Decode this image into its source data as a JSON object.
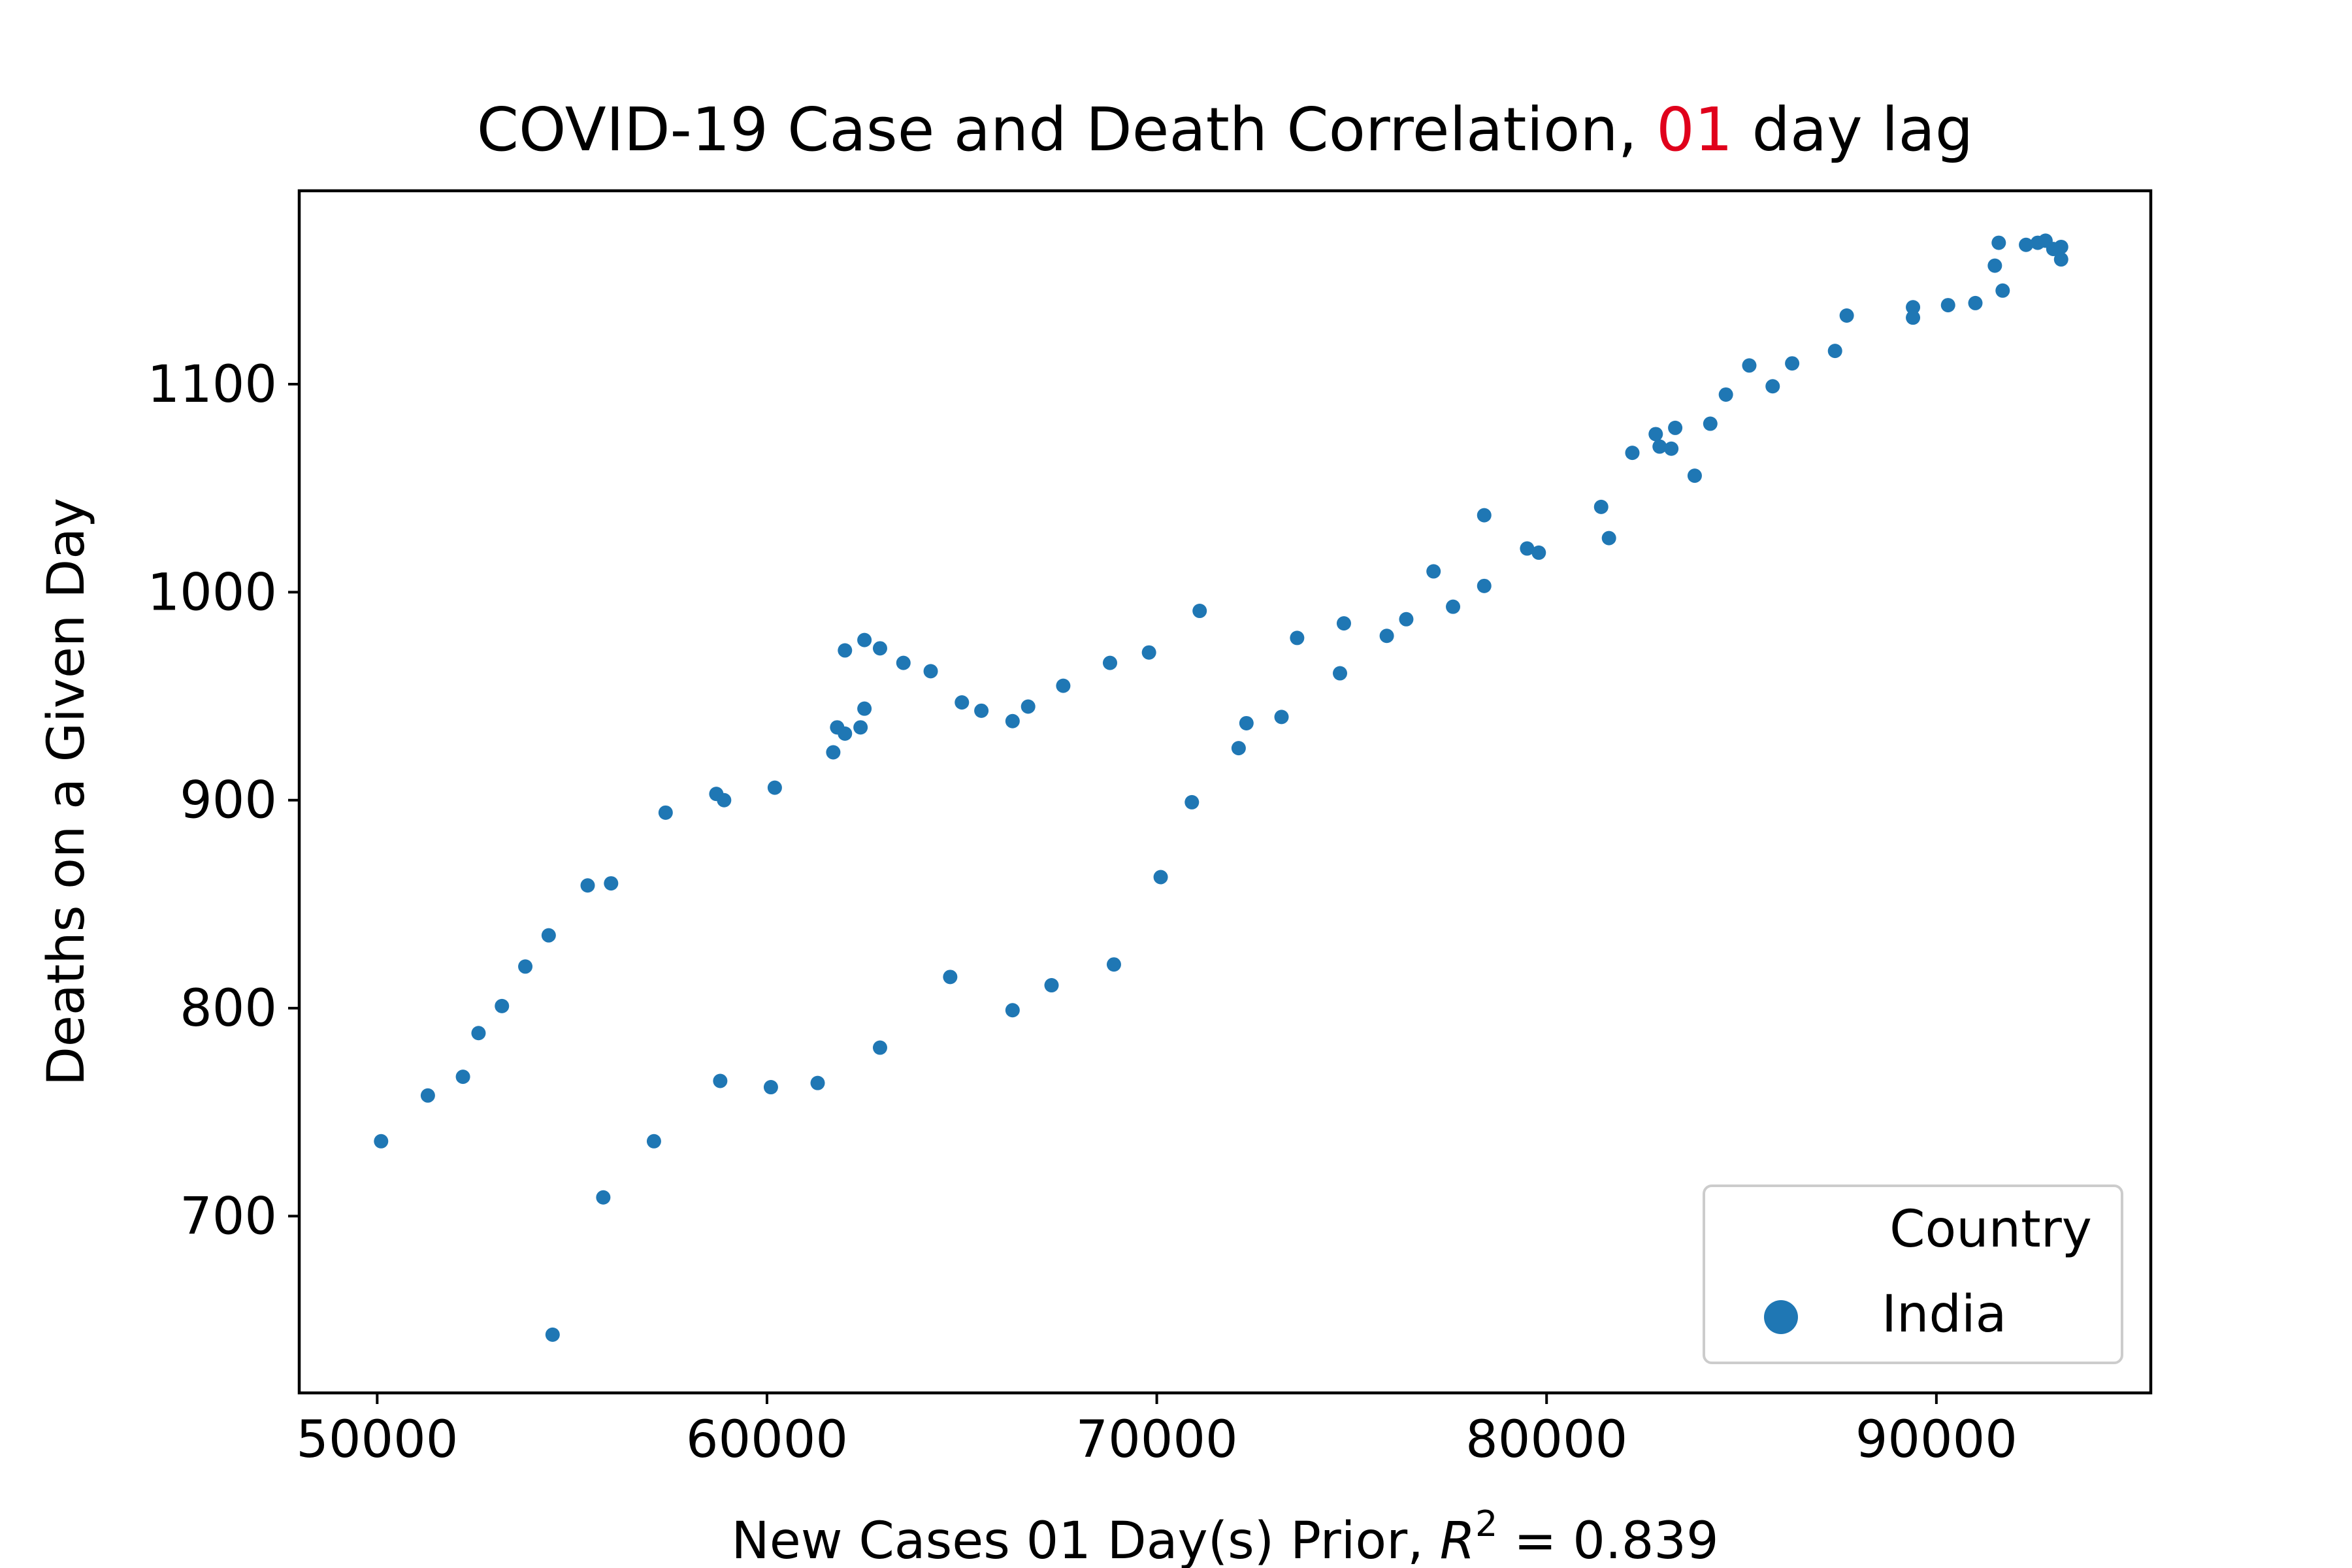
{
  "chart_data": {
    "type": "scatter",
    "title": {
      "prefix": "COVID-19 Case and Death Correlation, ",
      "highlight": "01",
      "suffix": " day lag",
      "highlight_color": "#e0001b"
    },
    "xlabel": {
      "prefix": "New Cases 01 Day(s) Prior, ",
      "r": "R",
      "sup": "2",
      "suffix": " = 0.839"
    },
    "ylabel": "Deaths on a Given Day",
    "xlim": [
      48000,
      95500
    ],
    "ylim": [
      615,
      1193
    ],
    "xticks": [
      50000,
      60000,
      70000,
      80000,
      90000
    ],
    "yticks": [
      700,
      800,
      900,
      1000,
      1100
    ],
    "grid": false,
    "legend": {
      "title": "Country",
      "placement": "bottom-right",
      "entries": [
        "India"
      ]
    },
    "series": [
      {
        "name": "India",
        "color": "#1f77b4",
        "points": [
          [
            50100,
            736
          ],
          [
            51300,
            758
          ],
          [
            52200,
            767
          ],
          [
            52600,
            788
          ],
          [
            53200,
            801
          ],
          [
            53800,
            820
          ],
          [
            54400,
            835
          ],
          [
            54500,
            643
          ],
          [
            55400,
            859
          ],
          [
            55800,
            709
          ],
          [
            56000,
            860
          ],
          [
            57100,
            736
          ],
          [
            57400,
            894
          ],
          [
            58700,
            903
          ],
          [
            58800,
            765
          ],
          [
            58900,
            900
          ],
          [
            60100,
            762
          ],
          [
            60200,
            906
          ],
          [
            61300,
            764
          ],
          [
            61700,
            923
          ],
          [
            61800,
            935
          ],
          [
            62000,
            972
          ],
          [
            62000,
            932
          ],
          [
            62400,
            935
          ],
          [
            62500,
            944
          ],
          [
            62500,
            977
          ],
          [
            62900,
            973
          ],
          [
            62900,
            781
          ],
          [
            63500,
            966
          ],
          [
            64200,
            962
          ],
          [
            64700,
            815
          ],
          [
            65000,
            947
          ],
          [
            65500,
            943
          ],
          [
            66300,
            938
          ],
          [
            66300,
            799
          ],
          [
            66700,
            945
          ],
          [
            67300,
            811
          ],
          [
            67600,
            955
          ],
          [
            68800,
            966
          ],
          [
            68900,
            821
          ],
          [
            69800,
            971
          ],
          [
            70100,
            863
          ],
          [
            70900,
            899
          ],
          [
            71100,
            991
          ],
          [
            72100,
            925
          ],
          [
            72300,
            937
          ],
          [
            73200,
            940
          ],
          [
            73600,
            978
          ],
          [
            74700,
            961
          ],
          [
            74800,
            985
          ],
          [
            75900,
            979
          ],
          [
            76400,
            987
          ],
          [
            77100,
            1010
          ],
          [
            77600,
            993
          ],
          [
            78400,
            1037
          ],
          [
            78400,
            1003
          ],
          [
            79500,
            1021
          ],
          [
            79800,
            1019
          ],
          [
            81400,
            1041
          ],
          [
            81600,
            1026
          ],
          [
            82200,
            1067
          ],
          [
            82800,
            1076
          ],
          [
            82900,
            1070
          ],
          [
            83200,
            1069
          ],
          [
            83300,
            1079
          ],
          [
            83800,
            1056
          ],
          [
            84200,
            1081
          ],
          [
            84600,
            1095
          ],
          [
            85200,
            1109
          ],
          [
            85800,
            1099
          ],
          [
            86300,
            1110
          ],
          [
            87400,
            1116
          ],
          [
            87700,
            1133
          ],
          [
            89400,
            1137
          ],
          [
            89400,
            1132
          ],
          [
            90300,
            1138
          ],
          [
            91000,
            1139
          ],
          [
            91500,
            1157
          ],
          [
            91600,
            1168
          ],
          [
            91700,
            1145
          ],
          [
            92300,
            1167
          ],
          [
            92600,
            1168
          ],
          [
            92800,
            1169
          ],
          [
            93000,
            1165
          ],
          [
            93200,
            1166
          ],
          [
            93200,
            1160
          ]
        ]
      }
    ]
  }
}
